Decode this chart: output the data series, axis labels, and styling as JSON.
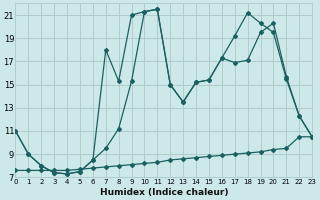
{
  "xlabel": "Humidex (Indice chaleur)",
  "bg_color": "#cde8e8",
  "grid_color": "#b0cccc",
  "line_color": "#1a6060",
  "xlim": [
    0,
    23
  ],
  "ylim": [
    7,
    22
  ],
  "xticks": [
    0,
    1,
    2,
    3,
    4,
    5,
    6,
    7,
    8,
    9,
    10,
    11,
    12,
    13,
    14,
    15,
    16,
    17,
    18,
    19,
    20,
    21,
    22,
    23
  ],
  "yticks": [
    7,
    9,
    11,
    13,
    15,
    17,
    19,
    21
  ],
  "series1": {
    "x": [
      0,
      1,
      2,
      3,
      4,
      5,
      6,
      7,
      8,
      9,
      10,
      11,
      12,
      13,
      14,
      15,
      16,
      17,
      18,
      19,
      20,
      21,
      22,
      23
    ],
    "y": [
      11,
      9.0,
      8.0,
      7.4,
      7.3,
      7.5,
      8.5,
      18.0,
      15.3,
      21.0,
      21.3,
      21.5,
      15.0,
      13.5,
      15.2,
      15.4,
      17.3,
      16.9,
      17.1,
      19.5,
      20.3,
      15.7,
      12.3,
      10.5
    ]
  },
  "series2": {
    "x": [
      0,
      1,
      2,
      3,
      4,
      5,
      6,
      7,
      8,
      9,
      10,
      11,
      12,
      13,
      14,
      15,
      16,
      17,
      18,
      19,
      20,
      21,
      22,
      23
    ],
    "y": [
      11,
      9.0,
      8.0,
      7.4,
      7.3,
      7.5,
      8.5,
      9.5,
      11.2,
      15.3,
      21.3,
      21.5,
      15.0,
      13.5,
      15.2,
      15.4,
      17.3,
      19.2,
      21.2,
      20.3,
      19.5,
      15.5,
      12.3,
      10.5
    ]
  },
  "series3": {
    "x": [
      0,
      1,
      2,
      3,
      4,
      5,
      6,
      7,
      8,
      9,
      10,
      11,
      12,
      13,
      14,
      15,
      16,
      17,
      18,
      19,
      20,
      21,
      22,
      23
    ],
    "y": [
      7.6,
      7.6,
      7.6,
      7.6,
      7.6,
      7.7,
      7.8,
      7.9,
      8.0,
      8.1,
      8.2,
      8.3,
      8.5,
      8.6,
      8.7,
      8.8,
      8.9,
      9.0,
      9.1,
      9.2,
      9.4,
      9.5,
      10.5,
      10.5
    ]
  }
}
